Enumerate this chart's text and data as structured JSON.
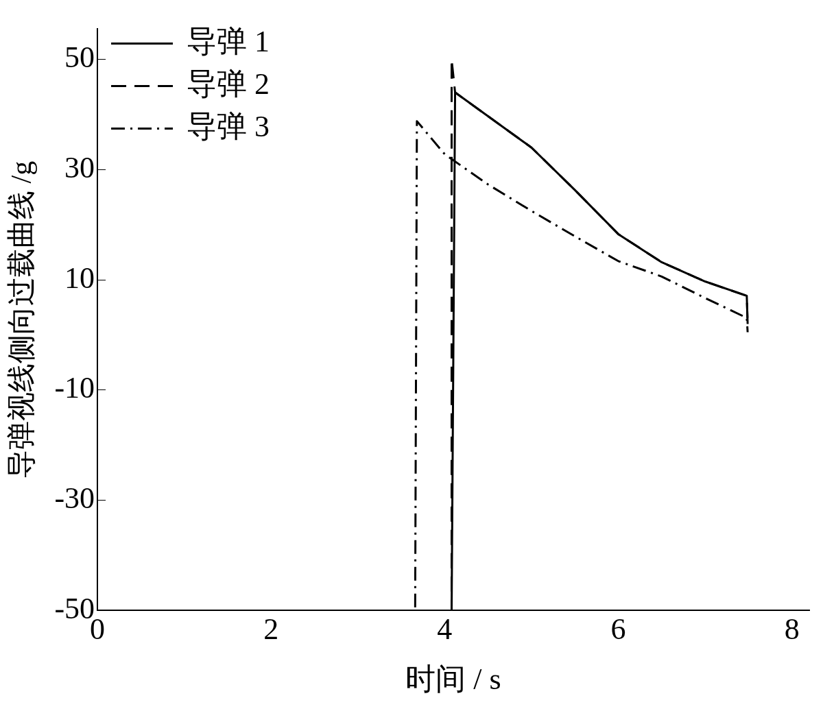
{
  "chart_data": {
    "type": "line",
    "xlabel": "时间 / s",
    "ylabel": "导弹视线侧向过载曲线 /g",
    "xlim": [
      0,
      8.2
    ],
    "xticks": [
      0,
      2,
      4,
      6,
      8
    ],
    "ylim": [
      -50,
      55.5
    ],
    "yticks": [
      -50,
      -30,
      -10,
      10,
      30,
      50
    ],
    "grid": false,
    "legend": "top left",
    "marker": "none",
    "series": [
      {
        "name": "导弹 1",
        "color": "#000000",
        "line_style": "solid",
        "x": [
          0,
          4.08,
          4.12,
          5,
          5.5,
          6,
          6.5,
          7,
          7.48,
          7.49
        ],
        "values": [
          -50,
          -50,
          44,
          34,
          26.3,
          18.3,
          13.2,
          9.7,
          7.1,
          2.0
        ]
      },
      {
        "name": "导弹 2",
        "color": "#000000",
        "line_style": "dashed",
        "x": [
          0,
          4.08,
          4.08,
          4.12,
          5,
          5.5,
          6,
          6.5,
          7,
          7.48,
          7.49
        ],
        "values": [
          -50,
          -50,
          50,
          44,
          34,
          26.3,
          18.3,
          13.2,
          9.7,
          7.1,
          2.0
        ]
      },
      {
        "name": "导弹 3",
        "color": "#000000",
        "line_style": "dashdot",
        "x": [
          0,
          3.66,
          3.68,
          4,
          4.5,
          5,
          5.5,
          6,
          6.5,
          7,
          7.48,
          7.49
        ],
        "values": [
          -50,
          -50,
          38.8,
          32.8,
          27.3,
          22.5,
          17.9,
          13.4,
          10.6,
          6.7,
          3.1,
          0.5
        ]
      }
    ]
  }
}
